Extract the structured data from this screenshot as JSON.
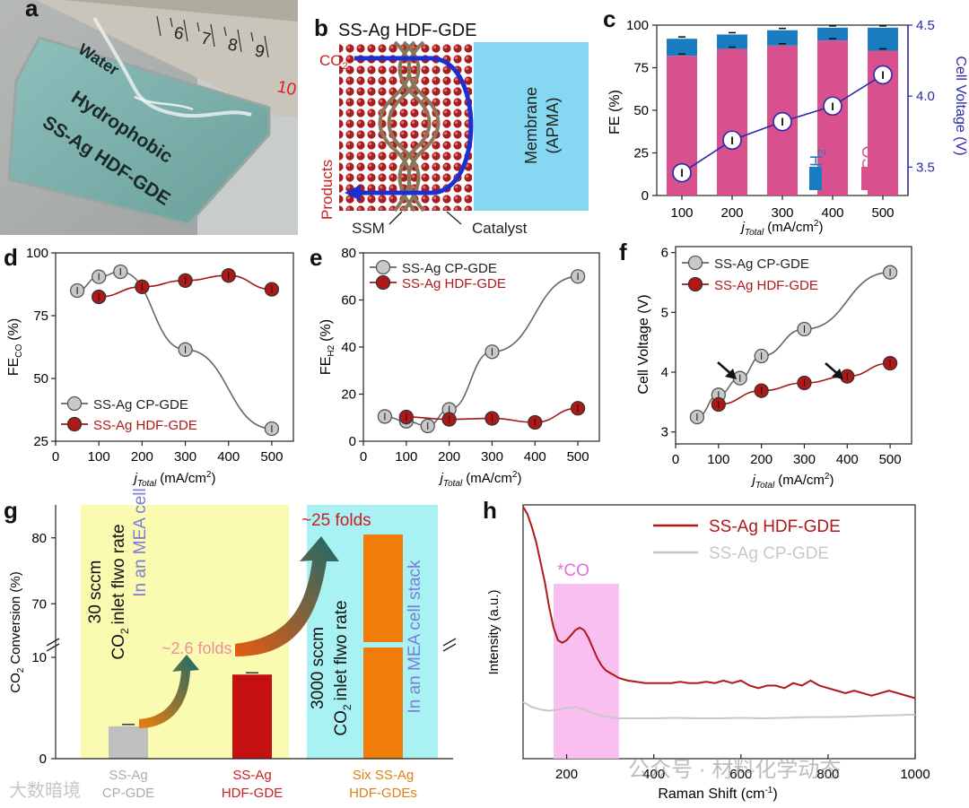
{
  "colors": {
    "pink": "#d9508e",
    "blue_bar": "#1a7cc0",
    "navy": "#2a2aa8",
    "gray": "#bfbfbf",
    "red": "#b01818",
    "yellow": "#fafab0",
    "cyan": "#a8f2f4",
    "orange": "#f07c0a",
    "magenta_box": "#f8b8f0",
    "membrane": "#86d8f2"
  },
  "panel_labels": {
    "a": "a",
    "b": "b",
    "c": "c",
    "d": "d",
    "e": "e",
    "f": "f",
    "g": "g",
    "h": "h"
  },
  "panel_a": {
    "water": "Water",
    "line1": "Hydrophobic",
    "line2": "SS-Ag HDF-GDE",
    "ruler_numbers": [
      "6",
      "7",
      "8",
      "9",
      "10"
    ]
  },
  "panel_b": {
    "title": "SS-Ag HDF-GDE",
    "co2": "CO",
    "co2_sub": "2",
    "products": "Products",
    "membrane_line1": "Membrane",
    "membrane_line2": "(APMA)",
    "ssm": "SSM",
    "catalyst": "Catalyst"
  },
  "chart_data": [
    {
      "panel": "c",
      "type": "bar",
      "stacked": true,
      "title": "",
      "xlabel_main": "j",
      "xlabel_sub": "Total",
      "xlabel_unit": "(mA/cm",
      "xlabel_sup": "2",
      "xlabel_end": ")",
      "ylabel": "FE (%)",
      "y2label": "Cell Voltage (V)",
      "categories": [
        "100",
        "200",
        "300",
        "400",
        "500"
      ],
      "ylim": [
        0,
        100
      ],
      "yticks": [
        "0",
        "25",
        "50",
        "75",
        "100"
      ],
      "y2lim": [
        3.3,
        4.5
      ],
      "y2ticks": [
        "3.5",
        "4.0",
        "4.5"
      ],
      "series": [
        {
          "name": "CO",
          "values": [
            82,
            86,
            88,
            91,
            85
          ]
        },
        {
          "name": "H2",
          "values": [
            10,
            8.5,
            9,
            7.5,
            13.5
          ]
        }
      ],
      "voltage": [
        3.46,
        3.69,
        3.82,
        3.93,
        4.15
      ],
      "legend_co": "CO",
      "legend_h2": "H",
      "legend_h2_sub": "2",
      "point_label": "I"
    },
    {
      "panel": "d",
      "type": "line",
      "xlabel_main": "j",
      "xlabel_sub": "Total",
      "xlabel_unit": "(mA/cm",
      "xlabel_sup": "2",
      "xlabel_end": ")",
      "ylabel": "FE",
      "ylabel_sub": "CO",
      "ylabel_end": "(%)",
      "xlim": [
        0,
        550
      ],
      "ylim": [
        25,
        100
      ],
      "xticks": [
        "0",
        "100",
        "200",
        "300",
        "400",
        "500"
      ],
      "yticks": [
        "25",
        "50",
        "75",
        "100"
      ],
      "series": [
        {
          "name": "SS-Ag CP-GDE",
          "x": [
            50,
            100,
            150,
            300,
            500
          ],
          "y": [
            85,
            90.5,
            92.5,
            61.5,
            30
          ]
        },
        {
          "name": "SS-Ag HDF-GDE",
          "x": [
            100,
            200,
            300,
            400,
            500
          ],
          "y": [
            82.5,
            86.5,
            89,
            91,
            85.5
          ]
        }
      ]
    },
    {
      "panel": "e",
      "type": "line",
      "xlabel_main": "j",
      "xlabel_sub": "Total",
      "xlabel_unit": "(mA/cm",
      "xlabel_sup": "2",
      "xlabel_end": ")",
      "ylabel": "FE",
      "ylabel_sub": "H2",
      "ylabel_end": "(%)",
      "xlim": [
        0,
        550
      ],
      "ylim": [
        0,
        80
      ],
      "xticks": [
        "0",
        "100",
        "200",
        "300",
        "400",
        "500"
      ],
      "yticks": [
        "0",
        "20",
        "40",
        "60",
        "80"
      ],
      "series": [
        {
          "name": "SS-Ag CP-GDE",
          "x": [
            50,
            100,
            150,
            200,
            300,
            500
          ],
          "y": [
            10.5,
            8.5,
            6.5,
            13.5,
            38,
            70
          ]
        },
        {
          "name": "SS-Ag HDF-GDE",
          "x": [
            100,
            200,
            300,
            400,
            500
          ],
          "y": [
            10.3,
            9.3,
            9.7,
            8,
            14
          ]
        }
      ]
    },
    {
      "panel": "f",
      "type": "line",
      "xlabel_main": "j",
      "xlabel_sub": "Total",
      "xlabel_unit": "(mA/cm",
      "xlabel_sup": "2",
      "xlabel_end": ")",
      "ylabel": "Cell Voltage (V)",
      "xlim": [
        0,
        550
      ],
      "ylim": [
        2.8,
        6.1
      ],
      "xticks": [
        "0",
        "100",
        "200",
        "300",
        "400",
        "500"
      ],
      "yticks": [
        "3",
        "4",
        "5",
        "6"
      ],
      "series": [
        {
          "name": "SS-Ag CP-GDE",
          "x": [
            50,
            100,
            150,
            200,
            300,
            500
          ],
          "y": [
            3.25,
            3.62,
            3.9,
            4.27,
            4.72,
            5.67
          ]
        },
        {
          "name": "SS-Ag HDF-GDE",
          "x": [
            100,
            200,
            300,
            400,
            500
          ],
          "y": [
            3.46,
            3.69,
            3.82,
            3.93,
            4.15
          ]
        }
      ]
    },
    {
      "panel": "g",
      "type": "bar",
      "ylabel": "CO",
      "ylabel_sub": "2",
      "ylabel_end": "Conversion (%)",
      "axis_break": true,
      "yticks_low": [
        "0",
        "10"
      ],
      "yticks_high": [
        "70",
        "80"
      ],
      "categories": [
        {
          "line1": "SS-Ag",
          "line2": "CP-GDE"
        },
        {
          "line1": "SS-Ag",
          "line2": "HDF-GDE"
        },
        {
          "line1": "Six SS-Ag",
          "line2": "HDF-GDEs"
        }
      ],
      "values": [
        3.2,
        8.3,
        80.5
      ],
      "annotations": {
        "fold1": "~2.6 folds",
        "fold2": "~25 folds",
        "mea_cell_a": "30 sccm",
        "mea_cell_b": "CO",
        "mea_cell_b_sub": "2",
        "mea_cell_b_end": "inlet flwo rate",
        "mea_cell_c": "In an MEA cell",
        "stack_a": "3000 sccm",
        "stack_b": "CO",
        "stack_b_sub": "2",
        "stack_b_end": "inlet flwo rate",
        "stack_c": "In an MEA cell stack"
      }
    },
    {
      "panel": "h",
      "type": "line",
      "xlabel": "Raman Shift (cm",
      "xlabel_sup": "-1",
      "xlabel_end": ")",
      "ylabel": "Intensity (a.u.)",
      "xlim": [
        100,
        1000
      ],
      "xticks": [
        "200",
        "400",
        "600",
        "800",
        "1000"
      ],
      "highlight_label": "*CO",
      "highlight_range": [
        170,
        320
      ],
      "series": [
        {
          "name": "SS-Ag HDF-GDE",
          "x": [
            100,
            110,
            120,
            130,
            140,
            150,
            160,
            170,
            180,
            190,
            200,
            210,
            220,
            230,
            240,
            250,
            260,
            270,
            280,
            290,
            300,
            310,
            320,
            340,
            360,
            380,
            400,
            420,
            440,
            460,
            480,
            500,
            520,
            540,
            560,
            580,
            600,
            620,
            640,
            660,
            680,
            700,
            720,
            740,
            760,
            780,
            800,
            820,
            840,
            860,
            880,
            900,
            920,
            940,
            960,
            980,
            1000
          ],
          "y": [
            1.0,
            0.97,
            0.92,
            0.86,
            0.78,
            0.7,
            0.6,
            0.52,
            0.47,
            0.46,
            0.47,
            0.49,
            0.51,
            0.52,
            0.51,
            0.48,
            0.44,
            0.4,
            0.37,
            0.35,
            0.34,
            0.33,
            0.32,
            0.31,
            0.305,
            0.3,
            0.3,
            0.3,
            0.3,
            0.305,
            0.3,
            0.3,
            0.305,
            0.3,
            0.31,
            0.3,
            0.31,
            0.29,
            0.28,
            0.29,
            0.29,
            0.28,
            0.3,
            0.29,
            0.31,
            0.29,
            0.28,
            0.27,
            0.26,
            0.27,
            0.26,
            0.25,
            0.26,
            0.27,
            0.26,
            0.25,
            0.24
          ]
        },
        {
          "name": "SS-Ag CP-GDE",
          "x": [
            100,
            120,
            140,
            160,
            180,
            200,
            220,
            240,
            260,
            280,
            300,
            320,
            340,
            360,
            400,
            450,
            500,
            550,
            600,
            650,
            700,
            750,
            800,
            850,
            900,
            950,
            1000
          ],
          "y": [
            0.225,
            0.205,
            0.195,
            0.19,
            0.195,
            0.2,
            0.205,
            0.195,
            0.18,
            0.17,
            0.165,
            0.16,
            0.16,
            0.16,
            0.16,
            0.162,
            0.16,
            0.16,
            0.162,
            0.16,
            0.162,
            0.165,
            0.165,
            0.167,
            0.17,
            0.172,
            0.175
          ]
        }
      ]
    }
  ],
  "watermark": {
    "text1": "公众号 · 材料化学动态",
    "text2": "大数暗境"
  }
}
